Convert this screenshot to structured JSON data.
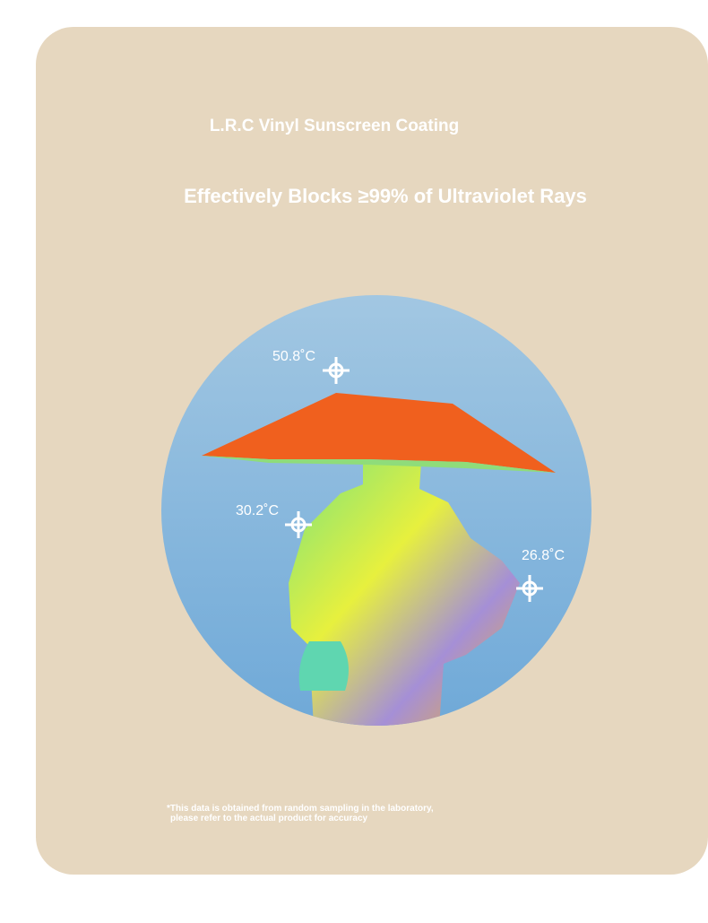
{
  "header": {
    "title": "L.R.C Vinyl Sunscreen Coating",
    "subtitle": "Effectively Blocks ≥99% of Ultraviolet Rays"
  },
  "readings": [
    {
      "label": "50.8˚C"
    },
    {
      "label": "30.2˚C"
    },
    {
      "label": "26.8˚C"
    }
  ],
  "footnote": {
    "lines": [
      "*This data is obtained from random sampling in the laboratory,",
      "please refer to the actual product for accuracy"
    ]
  }
}
